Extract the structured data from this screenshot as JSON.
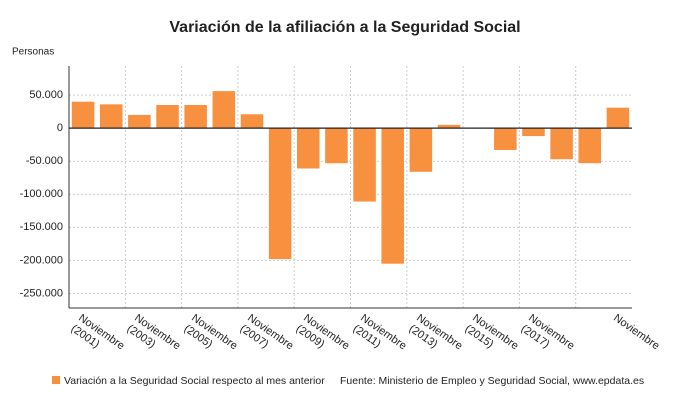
{
  "chart_data": {
    "type": "bar",
    "title": "Variación de la afiliación a la Seguridad Social",
    "y_label": "Personas",
    "categories": [
      "Noviembre (2001)",
      null,
      "Noviembre (2003)",
      null,
      "Noviembre (2005)",
      null,
      "Noviembre (2007)",
      null,
      "Noviembre (2009)",
      null,
      "Noviembre (2011)",
      null,
      "Noviembre (2013)",
      null,
      "Noviembre (2015)",
      null,
      "Noviembre (2017)",
      null,
      null,
      "Noviembre"
    ],
    "series": [
      {
        "name": "Variación a la Seguridad Social respecto al mes anterior",
        "color": "#f7913f",
        "values": [
          40000,
          36000,
          20000,
          35000,
          35000,
          56000,
          21000,
          -198000,
          -61000,
          -53000,
          -111000,
          -205000,
          -66000,
          5000,
          1000,
          -33000,
          -12000,
          -47000,
          -53000,
          31000
        ]
      }
    ],
    "ylim": [
      -272000,
      94000
    ],
    "yticks": [
      {
        "value": 50000,
        "label": "50.000"
      },
      0,
      {
        "value": -50000,
        "label": "-50.000"
      },
      {
        "value": -100000,
        "label": "-100.000"
      },
      {
        "value": -150000,
        "label": "-150.000"
      },
      {
        "value": -200000,
        "label": "-200.000"
      },
      {
        "value": -250000,
        "label": "-250.000"
      }
    ],
    "grid": true,
    "source": "Fuente: Ministerio de Empleo y Seguridad Social, www.epdata.es"
  }
}
